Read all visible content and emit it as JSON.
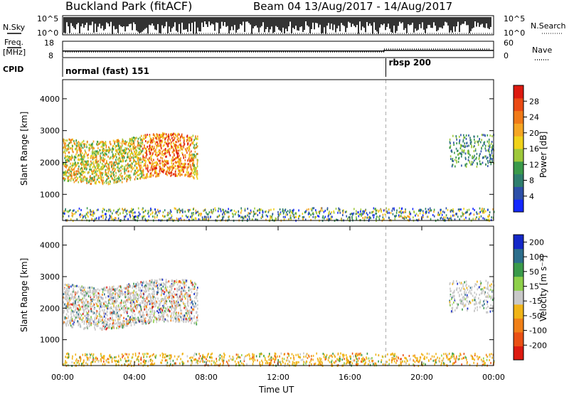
{
  "header": {
    "station": "Buckland Park (fitACF)",
    "beam_dates": "Beam 04  13/Aug/2017 - 14/Aug/2017"
  },
  "side_labels": {
    "nsky": "N.Sky",
    "nsearch": "N.Search",
    "freq": "Freq.",
    "mhz": "[MHz]",
    "nave": "Nave",
    "cpid": "CPID"
  },
  "noise_panel": {
    "left_ticks": [
      "10^5",
      "10^0"
    ],
    "right_ticks": [
      "10^5",
      "10^0"
    ]
  },
  "freq_panel": {
    "left_ticks": [
      "18",
      "8"
    ],
    "right_ticks": [
      "60",
      "0"
    ],
    "freq_mhz": [
      {
        "t": 0.0,
        "f": 12.0
      },
      {
        "t": 17.9,
        "f": 12.0
      },
      {
        "t": 17.9,
        "f": 12.4
      },
      {
        "t": 24.0,
        "f": 12.4
      }
    ]
  },
  "cpid_panel": {
    "segments": [
      {
        "label": "normal (fast) 151",
        "start_hour": 0
      },
      {
        "label": "rbsp 200",
        "start_hour": 18
      }
    ],
    "change_hour": 18
  },
  "axes": {
    "x_ticks": [
      "00:00",
      "04:00",
      "08:00",
      "12:00",
      "16:00",
      "20:00",
      "00:00"
    ],
    "x_label": "Time UT",
    "x_range_hours": [
      0,
      24
    ],
    "y_ticks": [
      "1000",
      "2000",
      "3000",
      "4000"
    ],
    "y_label": "Slant Range [km]",
    "y_range_km": [
      180,
      4600
    ]
  },
  "power_colorbar": {
    "label": "Power [dB]",
    "ticks": [
      "4",
      "8",
      "12",
      "16",
      "20",
      "24",
      "28"
    ],
    "range": [
      0,
      32
    ],
    "colors": [
      "#1428ff",
      "#2c4fa8",
      "#2e7e6e",
      "#3a9a4a",
      "#9ec83a",
      "#f0d21a",
      "#f5a623",
      "#f07a18",
      "#ea4a14",
      "#dd1a10"
    ]
  },
  "velocity_colorbar": {
    "label": "Velocity [m s⁻¹]",
    "ticks": [
      "200",
      "100",
      "50",
      "15",
      "-15",
      "-50",
      "-100",
      "-200"
    ],
    "colors": [
      "#1428c8",
      "#2c6e8c",
      "#3a9a4a",
      "#8ed04a",
      "#c8c8c8",
      "#f0b418",
      "#f08018",
      "#ea5014",
      "#dd1a10"
    ]
  },
  "chart_data": [
    {
      "type": "heatmap",
      "title": "Power",
      "xlabel": "Time UT",
      "ylabel": "Slant Range [km]",
      "xlim": [
        0,
        24
      ],
      "ylim": [
        180,
        4600
      ],
      "colorbar_label": "Power [dB]",
      "regions": [
        {
          "name": "main echo band",
          "t_start": 0.0,
          "t_end": 7.5,
          "range_min_km": 1400,
          "range_max_km": 2900,
          "power_db_range": [
            8,
            30
          ]
        },
        {
          "name": "near-range ground band",
          "t_start": 0.0,
          "t_end": 24.0,
          "range_min_km": 200,
          "range_max_km": 600,
          "power_db_range": [
            4,
            24
          ]
        },
        {
          "name": "late echo band",
          "t_start": 21.5,
          "t_end": 24.0,
          "range_min_km": 1900,
          "range_max_km": 2900,
          "power_db_range": [
            4,
            18
          ]
        }
      ]
    },
    {
      "type": "heatmap",
      "title": "Velocity",
      "xlabel": "Time UT",
      "ylabel": "Slant Range [km]",
      "xlim": [
        0,
        24
      ],
      "ylim": [
        180,
        4600
      ],
      "colorbar_label": "Velocity [m s⁻¹]",
      "regions": [
        {
          "name": "main echo band",
          "t_start": 0.0,
          "t_end": 7.5,
          "range_min_km": 1400,
          "range_max_km": 2900,
          "velocity_ms_range": [
            -200,
            200
          ]
        },
        {
          "name": "near-range ground band",
          "t_start": 0.0,
          "t_end": 24.0,
          "range_min_km": 200,
          "range_max_km": 600,
          "velocity_ms_range": [
            -100,
            50
          ]
        },
        {
          "name": "late echo band",
          "t_start": 21.5,
          "t_end": 24.0,
          "range_min_km": 1900,
          "range_max_km": 2900,
          "velocity_ms_range": [
            -50,
            50
          ]
        }
      ]
    }
  ]
}
